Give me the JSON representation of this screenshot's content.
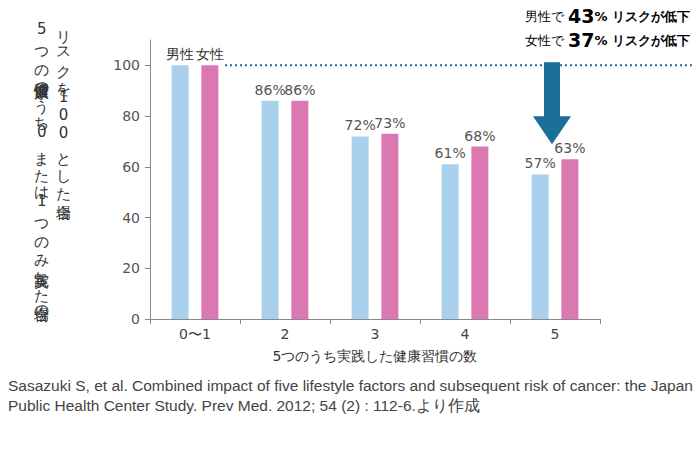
{
  "chart_data": {
    "type": "bar",
    "y_label": "5つの健康習慣のうち0または1つのみ実践した場合のリスクを100とした場合",
    "x_label": "5つのうち実践した健康習慣の数",
    "categories": [
      "0〜1",
      "2",
      "3",
      "4",
      "5"
    ],
    "series": [
      {
        "name": "男性",
        "color": "#a9d0ec",
        "values": [
          100,
          86,
          72,
          61,
          57
        ],
        "value_labels": [
          null,
          "86%",
          "72%",
          "61%",
          "57%"
        ]
      },
      {
        "name": "女性",
        "color": "#db78b2",
        "values": [
          100,
          86,
          73,
          68,
          63
        ],
        "value_labels": [
          null,
          "86%",
          "73%",
          "68%",
          "63%"
        ]
      }
    ],
    "ylim": [
      0,
      110
    ],
    "yticks": [
      0,
      20,
      40,
      60,
      80,
      100
    ],
    "grid": false,
    "data_labels": true,
    "reference_lines": [
      {
        "value": 100,
        "line_style": "dotted",
        "color": "#1a6e99"
      }
    ],
    "annotations": [
      {
        "parts": [
          "男性で ",
          "43",
          "% リスクが低下"
        ],
        "color": "#4bb3e0"
      },
      {
        "parts": [
          "女性で ",
          "37",
          "% リスクが低下"
        ],
        "color": "#e0609f"
      }
    ],
    "source": "Sasazuki S, et al. Combined impact of five lifestyle factors and subsequent risk of cancer: the Japan Public Health Center Study. Prev Med. 2012; 54 (2) : 112-6.より作成"
  }
}
